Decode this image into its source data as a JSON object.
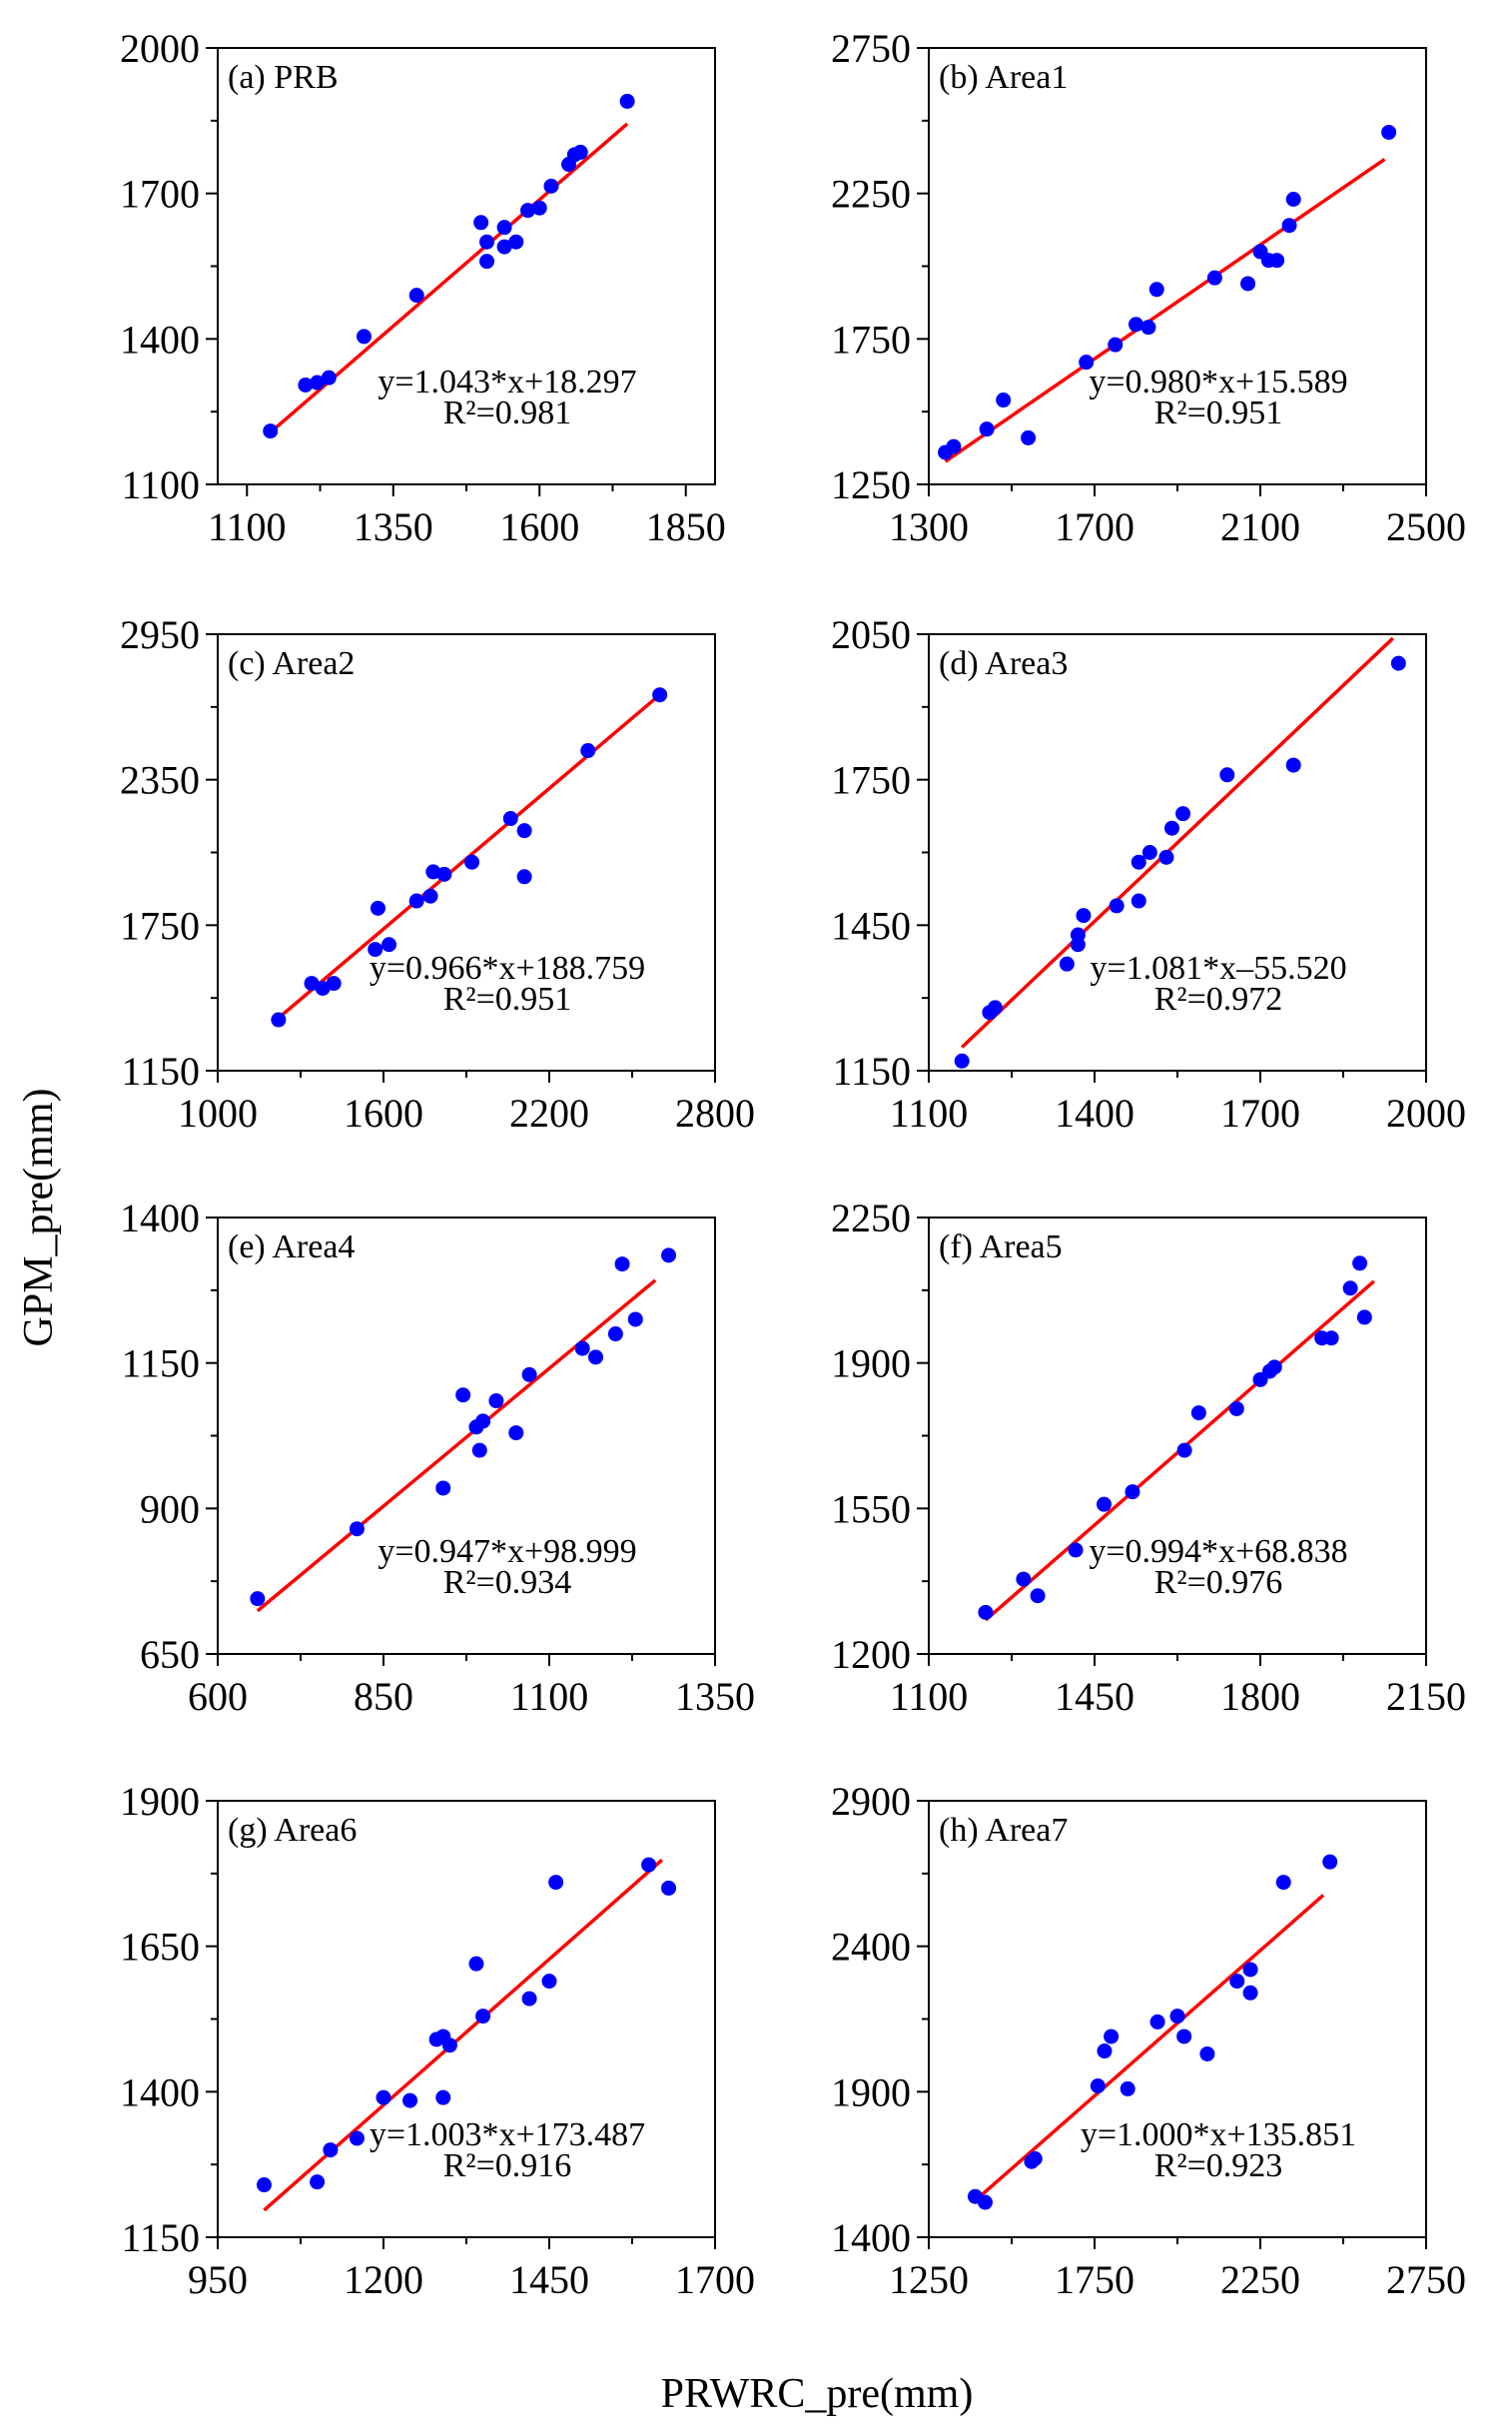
{
  "figure": {
    "ylabel": "GPM_pre(mm)",
    "xlabel": "PRWRC_pre(mm)"
  },
  "colors": {
    "points": "#0000ff",
    "fit": "#ff0000",
    "axes": "#000000"
  },
  "chart_data": [
    {
      "type": "scatter",
      "title": "(a) PRB",
      "xlim": [
        1050,
        1900
      ],
      "ylim": [
        1100,
        2000
      ],
      "xticks": [
        1100,
        1350,
        1600,
        1850
      ],
      "yticks": [
        1100,
        1400,
        1700,
        2000
      ],
      "slope": 1.043,
      "intercept": 18.297,
      "fit_x": [
        1140,
        1750
      ],
      "equation": "y=1.043*x+18.297",
      "r2": "R²=0.981",
      "points": [
        [
          1140,
          1210
        ],
        [
          1200,
          1305
        ],
        [
          1220,
          1310
        ],
        [
          1240,
          1320
        ],
        [
          1300,
          1405
        ],
        [
          1390,
          1490
        ],
        [
          1500,
          1640
        ],
        [
          1510,
          1560
        ],
        [
          1510,
          1600
        ],
        [
          1540,
          1630
        ],
        [
          1540,
          1590
        ],
        [
          1560,
          1600
        ],
        [
          1580,
          1665
        ],
        [
          1600,
          1670
        ],
        [
          1620,
          1715
        ],
        [
          1650,
          1760
        ],
        [
          1660,
          1780
        ],
        [
          1670,
          1785
        ],
        [
          1750,
          1890
        ]
      ]
    },
    {
      "type": "scatter",
      "title": "(b) Area1",
      "xlim": [
        1300,
        2500
      ],
      "ylim": [
        1250,
        2750
      ],
      "xticks": [
        1300,
        1700,
        2100,
        2500
      ],
      "yticks": [
        1250,
        1750,
        2250,
        2750
      ],
      "slope": 0.98,
      "intercept": 15.589,
      "fit_x": [
        1340,
        2400
      ],
      "equation": "y=0.980*x+15.589",
      "r2": "R²=0.951",
      "points": [
        [
          1340,
          1360
        ],
        [
          1360,
          1380
        ],
        [
          1440,
          1440
        ],
        [
          1480,
          1540
        ],
        [
          1540,
          1410
        ],
        [
          1680,
          1670
        ],
        [
          1750,
          1730
        ],
        [
          1800,
          1800
        ],
        [
          1830,
          1790
        ],
        [
          1850,
          1920
        ],
        [
          1990,
          1960
        ],
        [
          2070,
          1940
        ],
        [
          2100,
          2050
        ],
        [
          2120,
          2020
        ],
        [
          2140,
          2020
        ],
        [
          2170,
          2140
        ],
        [
          2180,
          2230
        ],
        [
          2410,
          2460
        ]
      ]
    },
    {
      "type": "scatter",
      "title": "(c) Area2",
      "xlim": [
        1000,
        2800
      ],
      "ylim": [
        1150,
        2950
      ],
      "xticks": [
        1000,
        1600,
        2200,
        2800
      ],
      "yticks": [
        1150,
        1750,
        2350,
        2950
      ],
      "slope": 0.966,
      "intercept": 188.759,
      "fit_x": [
        1220,
        2590
      ],
      "equation": "y=0.966*x+188.759",
      "r2": "R²=0.951",
      "points": [
        [
          1220,
          1360
        ],
        [
          1340,
          1510
        ],
        [
          1380,
          1490
        ],
        [
          1420,
          1510
        ],
        [
          1570,
          1650
        ],
        [
          1580,
          1820
        ],
        [
          1620,
          1670
        ],
        [
          1720,
          1850
        ],
        [
          1770,
          1870
        ],
        [
          1780,
          1970
        ],
        [
          1820,
          1960
        ],
        [
          1920,
          2010
        ],
        [
          2060,
          2190
        ],
        [
          2110,
          2140
        ],
        [
          2110,
          1950
        ],
        [
          2340,
          2470
        ],
        [
          2600,
          2700
        ]
      ]
    },
    {
      "type": "scatter",
      "title": "(d) Area3",
      "xlim": [
        1100,
        2000
      ],
      "ylim": [
        1150,
        2050
      ],
      "xticks": [
        1100,
        1400,
        1700,
        2000
      ],
      "yticks": [
        1150,
        1450,
        1750,
        2050
      ],
      "slope": 1.081,
      "intercept": -55.52,
      "fit_x": [
        1160,
        1940
      ],
      "equation": "y=1.081*x–55.520",
      "r2": "R²=0.972",
      "points": [
        [
          1160,
          1170
        ],
        [
          1210,
          1270
        ],
        [
          1220,
          1280
        ],
        [
          1350,
          1370
        ],
        [
          1370,
          1410
        ],
        [
          1370,
          1430
        ],
        [
          1380,
          1470
        ],
        [
          1440,
          1490
        ],
        [
          1480,
          1500
        ],
        [
          1480,
          1580
        ],
        [
          1500,
          1600
        ],
        [
          1530,
          1590
        ],
        [
          1540,
          1650
        ],
        [
          1560,
          1680
        ],
        [
          1640,
          1760
        ],
        [
          1760,
          1780
        ],
        [
          1950,
          1990
        ]
      ]
    },
    {
      "type": "scatter",
      "title": "(e) Area4",
      "xlim": [
        600,
        1350
      ],
      "ylim": [
        650,
        1400
      ],
      "xticks": [
        600,
        850,
        1100,
        1350
      ],
      "yticks": [
        650,
        900,
        1150,
        1400
      ],
      "slope": 0.947,
      "intercept": 98.999,
      "fit_x": [
        660,
        1260
      ],
      "equation": "y=0.947*x+98.999",
      "r2": "R²=0.934",
      "points": [
        [
          660,
          745
        ],
        [
          810,
          865
        ],
        [
          940,
          935
        ],
        [
          970,
          1095
        ],
        [
          990,
          1040
        ],
        [
          995,
          1000
        ],
        [
          1000,
          1050
        ],
        [
          1020,
          1085
        ],
        [
          1050,
          1030
        ],
        [
          1070,
          1130
        ],
        [
          1150,
          1175
        ],
        [
          1170,
          1160
        ],
        [
          1200,
          1200
        ],
        [
          1210,
          1320
        ],
        [
          1230,
          1225
        ],
        [
          1280,
          1335
        ]
      ]
    },
    {
      "type": "scatter",
      "title": "(f) Area5",
      "xlim": [
        1100,
        2150
      ],
      "ylim": [
        1200,
        2250
      ],
      "xticks": [
        1100,
        1450,
        1800,
        2150
      ],
      "yticks": [
        1200,
        1550,
        1900,
        2250
      ],
      "slope": 0.994,
      "intercept": 68.838,
      "fit_x": [
        1220,
        2040
      ],
      "equation": "y=0.994*x+68.838",
      "r2": "R²=0.976",
      "points": [
        [
          1220,
          1300
        ],
        [
          1300,
          1380
        ],
        [
          1330,
          1340
        ],
        [
          1410,
          1450
        ],
        [
          1470,
          1560
        ],
        [
          1530,
          1590
        ],
        [
          1640,
          1690
        ],
        [
          1670,
          1780
        ],
        [
          1750,
          1790
        ],
        [
          1800,
          1860
        ],
        [
          1820,
          1880
        ],
        [
          1830,
          1890
        ],
        [
          1930,
          1960
        ],
        [
          1950,
          1960
        ],
        [
          1990,
          2080
        ],
        [
          2010,
          2140
        ],
        [
          2020,
          2010
        ]
      ]
    },
    {
      "type": "scatter",
      "title": "(g) Area6",
      "xlim": [
        950,
        1700
      ],
      "ylim": [
        1150,
        1900
      ],
      "xticks": [
        950,
        1200,
        1450,
        1700
      ],
      "yticks": [
        1150,
        1400,
        1650,
        1900
      ],
      "slope": 1.003,
      "intercept": 173.487,
      "fit_x": [
        1020,
        1620
      ],
      "equation": "y=1.003*x+173.487",
      "r2": "R²=0.916",
      "points": [
        [
          1020,
          1240
        ],
        [
          1100,
          1245
        ],
        [
          1120,
          1300
        ],
        [
          1160,
          1320
        ],
        [
          1200,
          1390
        ],
        [
          1240,
          1385
        ],
        [
          1280,
          1490
        ],
        [
          1290,
          1390
        ],
        [
          1290,
          1495
        ],
        [
          1300,
          1480
        ],
        [
          1340,
          1620
        ],
        [
          1350,
          1530
        ],
        [
          1420,
          1560
        ],
        [
          1450,
          1590
        ],
        [
          1460,
          1760
        ],
        [
          1600,
          1790
        ],
        [
          1630,
          1750
        ]
      ]
    },
    {
      "type": "scatter",
      "title": "(h) Area7",
      "xlim": [
        1250,
        2750
      ],
      "ylim": [
        1400,
        2900
      ],
      "xticks": [
        1250,
        1750,
        2250,
        2750
      ],
      "yticks": [
        1400,
        1900,
        2400,
        2900
      ],
      "slope": 1.0,
      "intercept": 135.851,
      "fit_x": [
        1390,
        2440
      ],
      "equation": "y=1.000*x+135.851",
      "r2": "R²=0.923",
      "points": [
        [
          1390,
          1540
        ],
        [
          1420,
          1520
        ],
        [
          1560,
          1660
        ],
        [
          1570,
          1670
        ],
        [
          1760,
          1920
        ],
        [
          1780,
          2040
        ],
        [
          1800,
          2090
        ],
        [
          1850,
          1910
        ],
        [
          1940,
          2140
        ],
        [
          2000,
          2160
        ],
        [
          2020,
          2090
        ],
        [
          2090,
          2030
        ],
        [
          2180,
          2280
        ],
        [
          2220,
          2320
        ],
        [
          2220,
          2240
        ],
        [
          2320,
          2620
        ],
        [
          2460,
          2690
        ]
      ]
    }
  ]
}
